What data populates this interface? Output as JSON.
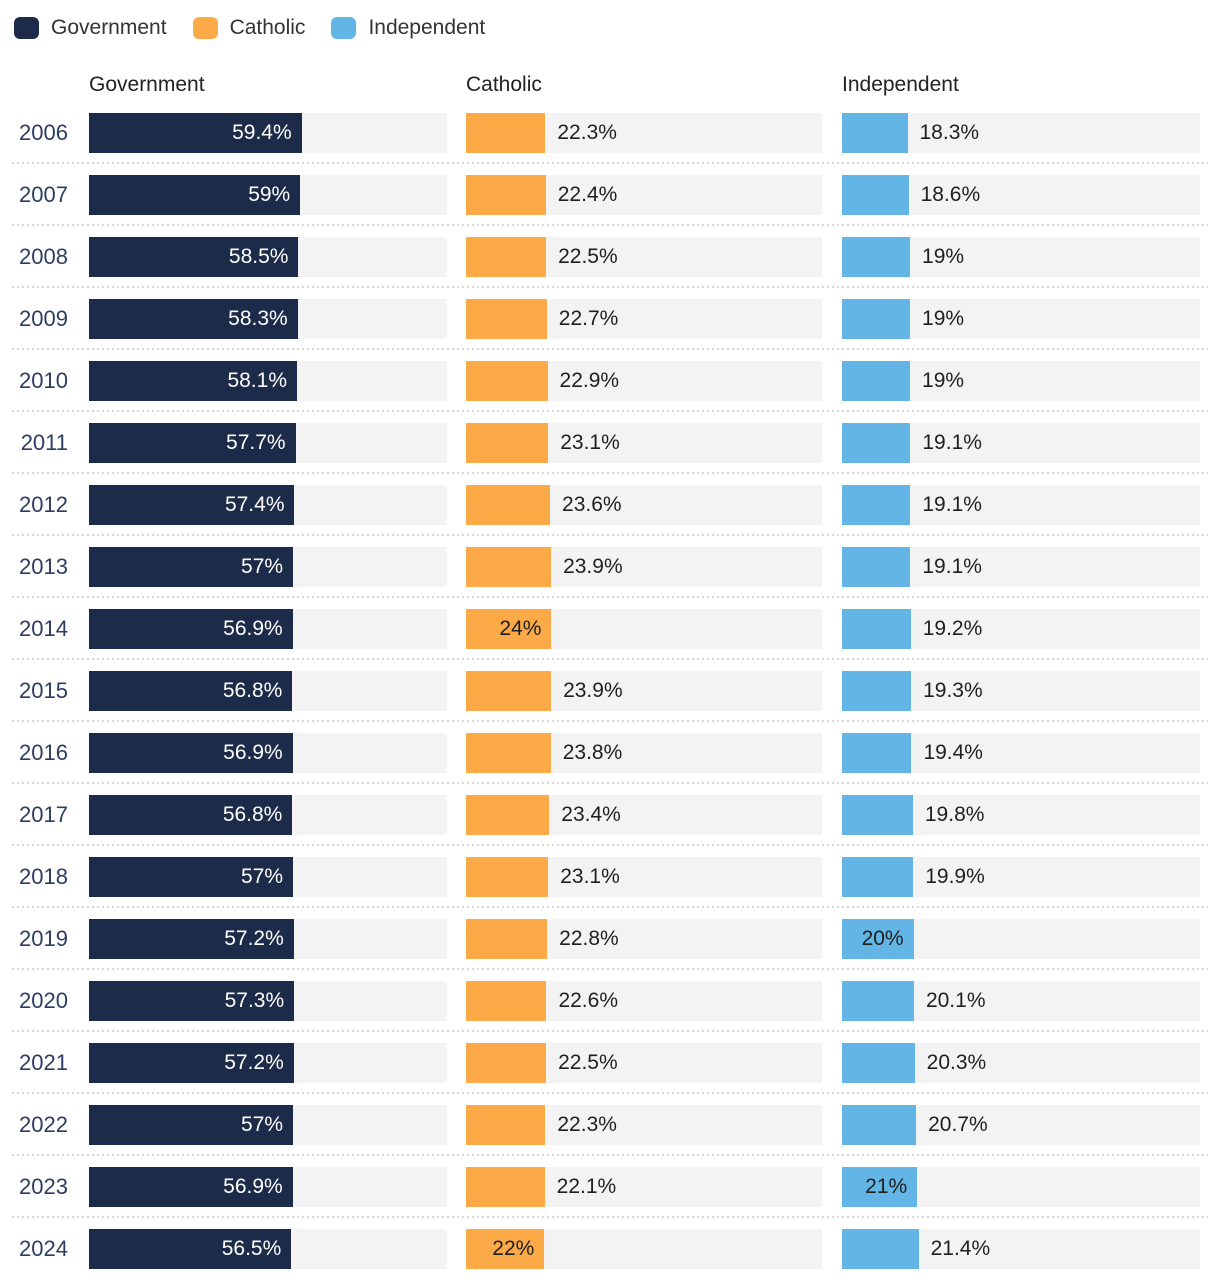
{
  "legend": {
    "items": [
      {
        "label": "Government",
        "color": "#1c2b49"
      },
      {
        "label": "Catholic",
        "color": "#fbaa47"
      },
      {
        "label": "Independent",
        "color": "#62b5e4"
      }
    ]
  },
  "chart_data": {
    "type": "bar",
    "orientation": "horizontal",
    "unit": "%",
    "xlim": [
      0,
      100
    ],
    "grid": false,
    "legend_position": "top-left",
    "column_headers": [
      "Government",
      "Catholic",
      "Independent"
    ],
    "categories": [
      "2006",
      "2007",
      "2008",
      "2009",
      "2010",
      "2011",
      "2012",
      "2013",
      "2014",
      "2015",
      "2016",
      "2017",
      "2018",
      "2019",
      "2020",
      "2021",
      "2022",
      "2023",
      "2024"
    ],
    "series": [
      {
        "name": "Government",
        "color": "#1c2b49",
        "track_color": "#f3f3f3",
        "label_color_inside": "#ffffff",
        "label_color_outside": "#1f1f1f",
        "values": [
          59.4,
          59,
          58.5,
          58.3,
          58.1,
          57.7,
          57.4,
          57,
          56.9,
          56.8,
          56.9,
          56.8,
          57,
          57.2,
          57.3,
          57.2,
          57,
          56.9,
          56.5
        ],
        "labels": [
          "59.4%",
          "59%",
          "58.5%",
          "58.3%",
          "58.1%",
          "57.7%",
          "57.4%",
          "57%",
          "56.9%",
          "56.8%",
          "56.9%",
          "56.8%",
          "57%",
          "57.2%",
          "57.3%",
          "57.2%",
          "57%",
          "56.9%",
          "56.5%"
        ],
        "label_inside": [
          true,
          true,
          true,
          true,
          true,
          true,
          true,
          true,
          true,
          true,
          true,
          true,
          true,
          true,
          true,
          true,
          true,
          true,
          true
        ]
      },
      {
        "name": "Catholic",
        "color": "#fbaa47",
        "track_color": "#f3f3f3",
        "label_color_inside": "#1f1f1f",
        "label_color_outside": "#1f1f1f",
        "values": [
          22.3,
          22.4,
          22.5,
          22.7,
          22.9,
          23.1,
          23.6,
          23.9,
          24,
          23.9,
          23.8,
          23.4,
          23.1,
          22.8,
          22.6,
          22.5,
          22.3,
          22.1,
          22
        ],
        "labels": [
          "22.3%",
          "22.4%",
          "22.5%",
          "22.7%",
          "22.9%",
          "23.1%",
          "23.6%",
          "23.9%",
          "24%",
          "23.9%",
          "23.8%",
          "23.4%",
          "23.1%",
          "22.8%",
          "22.6%",
          "22.5%",
          "22.3%",
          "22.1%",
          "22%"
        ],
        "label_inside": [
          false,
          false,
          false,
          false,
          false,
          false,
          false,
          false,
          true,
          false,
          false,
          false,
          false,
          false,
          false,
          false,
          false,
          false,
          true
        ]
      },
      {
        "name": "Independent",
        "color": "#62b5e4",
        "track_color": "#f3f3f3",
        "label_color_inside": "#1f1f1f",
        "label_color_outside": "#1f1f1f",
        "values": [
          18.3,
          18.6,
          19,
          19,
          19,
          19.1,
          19.1,
          19.1,
          19.2,
          19.3,
          19.4,
          19.8,
          19.9,
          20,
          20.1,
          20.3,
          20.7,
          21,
          21.4
        ],
        "labels": [
          "18.3%",
          "18.6%",
          "19%",
          "19%",
          "19%",
          "19.1%",
          "19.1%",
          "19.1%",
          "19.2%",
          "19.3%",
          "19.4%",
          "19.8%",
          "19.9%",
          "20%",
          "20.1%",
          "20.3%",
          "20.7%",
          "21%",
          "21.4%"
        ],
        "label_inside": [
          false,
          false,
          false,
          false,
          false,
          false,
          false,
          false,
          false,
          false,
          false,
          false,
          false,
          true,
          false,
          false,
          false,
          true,
          false
        ]
      }
    ]
  }
}
